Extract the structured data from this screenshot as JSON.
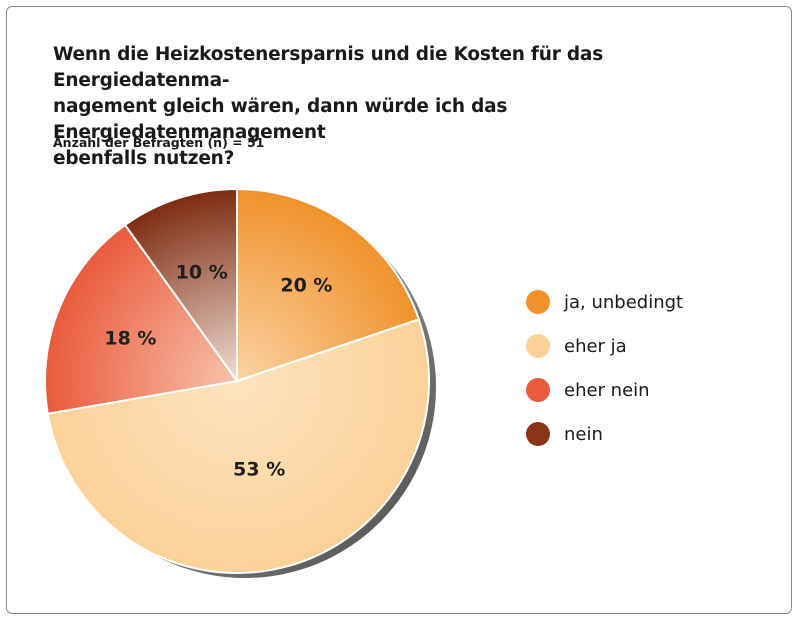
{
  "title": "Wenn die Heizkostenersparnis und die Kosten für das Energiedatenma-nagement gleich wären, dann würde ich das Energiedatenmanagement ebenfalls nutzen?",
  "title_lines": [
    "Wenn die Heizkostenersparnis und die Kosten für das Energiedatenma-",
    "nagement gleich wären, dann würde ich das Energiedatenmanagement",
    "ebenfalls nutzen?"
  ],
  "subtitle": "Anzahl der Befragten (n) = 51",
  "chart_data": {
    "type": "pie",
    "title": "Wenn die Heizkostenersparnis und die Kosten für das Energiedatenmanagement gleich wären, dann würde ich das Energiedatenmanagement ebenfalls nutzen?",
    "subtitle": "Anzahl der Befragten (n) = 51",
    "categories": [
      "ja, unbedingt",
      "eher ja",
      "eher nein",
      "nein"
    ],
    "values": [
      20,
      53,
      18,
      10
    ],
    "labels": [
      "20 %",
      "53 %",
      "18 %",
      "10 %"
    ],
    "colors": [
      "#f0922c",
      "#fcd29a",
      "#ea5a3c",
      "#8b3518"
    ],
    "legend_position": "right"
  }
}
